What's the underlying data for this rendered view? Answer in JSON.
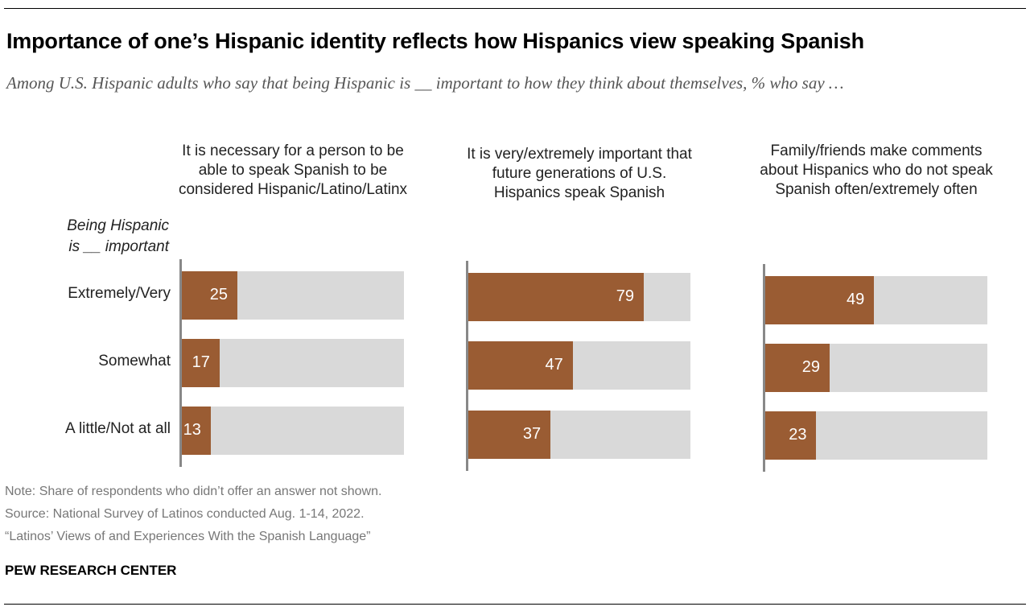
{
  "title": "Importance of one’s Hispanic identity reflects how Hispanics view speaking Spanish",
  "subtitle": "Among U.S. Hispanic adults who say that being Hispanic is __ important to how they think about themselves, % who say …",
  "chart_data": {
    "type": "bar",
    "row_header": [
      "Being Hispanic",
      "is __ important"
    ],
    "categories": [
      "Extremely/Very",
      "Somewhat",
      "A little/Not at all"
    ],
    "xlim": [
      0,
      100
    ],
    "panels": [
      {
        "title": "It is necessary for a person to be able to speak Spanish to be considered Hispanic/Latino/Latinx",
        "values": [
          25,
          17,
          13
        ]
      },
      {
        "title": "It is very/extremely important that future generations of U.S. Hispanics speak Spanish",
        "values": [
          79,
          47,
          37
        ]
      },
      {
        "title": "Family/friends make comments about Hispanics who do not speak Spanish often/extremely often",
        "values": [
          49,
          29,
          23
        ]
      }
    ],
    "colors": {
      "bar": "#9a5c33",
      "background": "#d9d9d9"
    }
  },
  "notes": [
    "Note: Share of respondents who didn’t offer an answer not shown.",
    "Source: National Survey of Latinos conducted Aug. 1-14, 2022.",
    "“Latinos’ Views of and Experiences With the Spanish Language”"
  ],
  "brand": "PEW RESEARCH CENTER"
}
